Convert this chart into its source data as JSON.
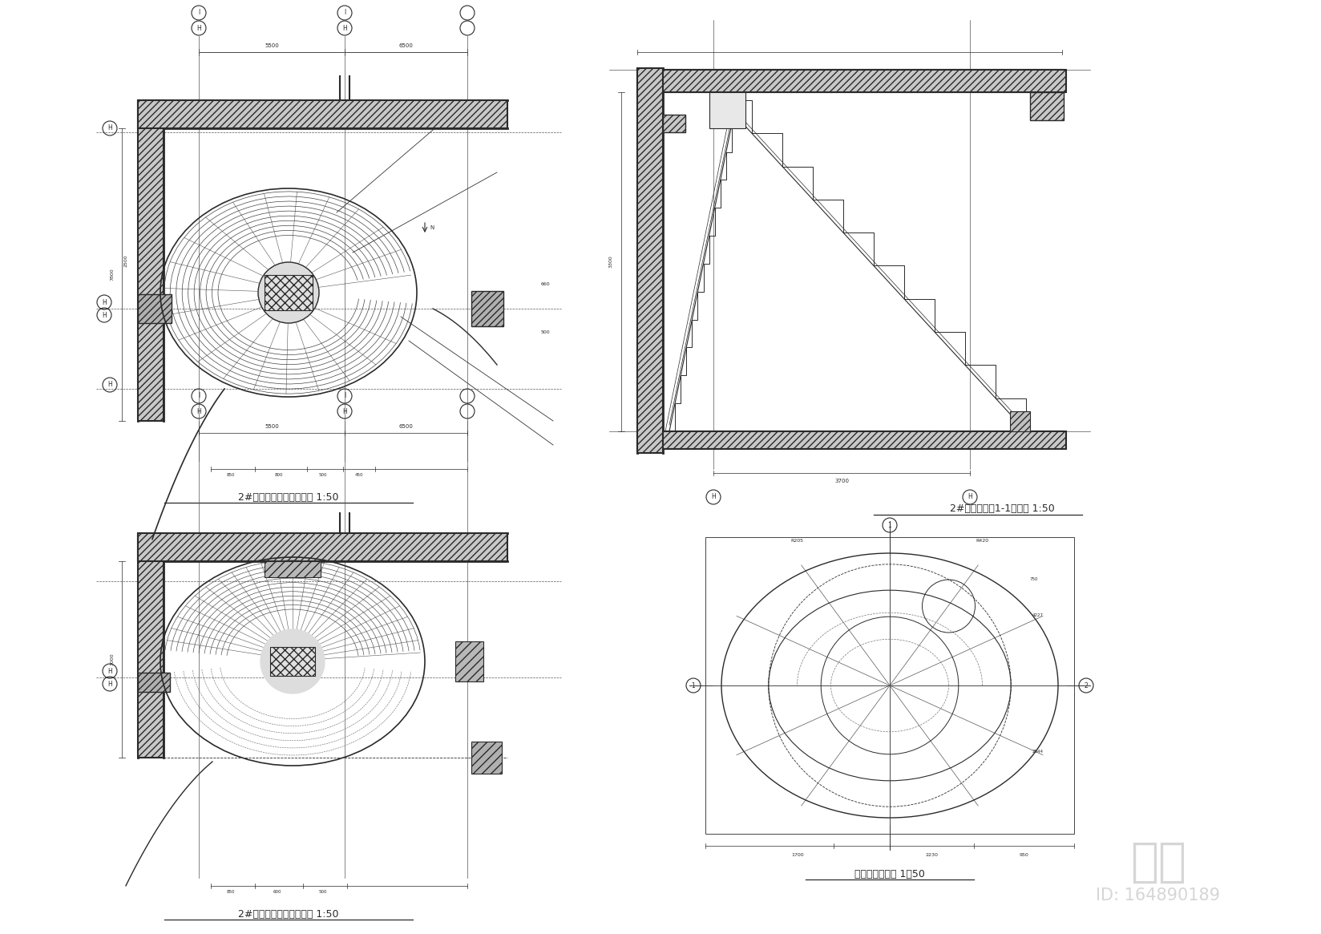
{
  "bg_color": "#ffffff",
  "line_color": "#2a2a2a",
  "watermark_color": "#cccccc",
  "watermark_text": "知未",
  "watermark_id": "ID: 164890189",
  "labels": {
    "top_left": "2#源圆型楼梯二层平面图 1:50",
    "bottom_left": "2#源圆型楼梯一层平面图 1:50",
    "top_right": "2#源圆型楼梯1-1剪面图 1:50",
    "bottom_right": "源圆单线作法图 1：50"
  },
  "figure_width": 16.48,
  "figure_height": 11.65
}
